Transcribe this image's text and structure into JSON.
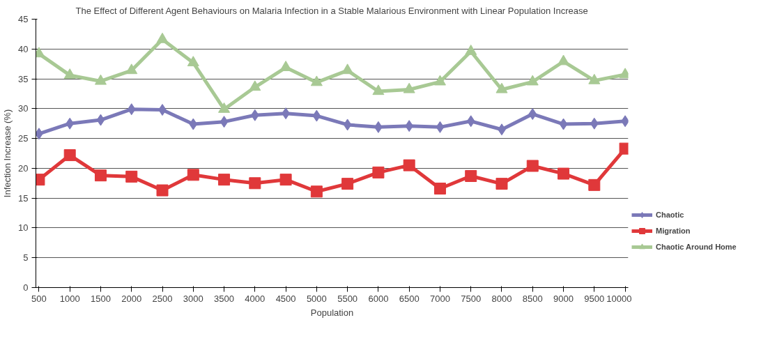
{
  "chart_data": {
    "type": "line",
    "title": "The Effect of Different Agent Behaviours on Malaria Infection in a Stable Malarious Environment with Linear Population Increase",
    "xlabel": "Population",
    "ylabel": "Infection Increase (%)",
    "categories": [
      "500",
      "1000",
      "1500",
      "2000",
      "2500",
      "3000",
      "3500",
      "4000",
      "4500",
      "5000",
      "5500",
      "6000",
      "6500",
      "7000",
      "7500",
      "8000",
      "8500",
      "9000",
      "9500",
      "10000"
    ],
    "ylim": [
      0,
      45
    ],
    "yticks": [
      0,
      5,
      10,
      15,
      20,
      25,
      30,
      35,
      40,
      45
    ],
    "grid": "y",
    "legend": "right",
    "series": [
      {
        "name": "Chaotic",
        "color": "#7b79b8",
        "marker": "diamond",
        "values": [
          25.8,
          27.5,
          28.1,
          29.9,
          29.8,
          27.4,
          27.8,
          28.9,
          29.2,
          28.8,
          27.3,
          26.9,
          27.1,
          26.9,
          27.9,
          26.5,
          29.1,
          27.4,
          27.5,
          27.9
        ]
      },
      {
        "name": "Migration",
        "color": "#e0383a",
        "marker": "square",
        "values": [
          18.1,
          22.2,
          18.8,
          18.6,
          16.3,
          18.9,
          18.1,
          17.5,
          18.1,
          16.1,
          17.4,
          19.3,
          20.5,
          16.6,
          18.7,
          17.4,
          20.4,
          19.1,
          17.2,
          23.3
        ]
      },
      {
        "name": "Chaotic Around Home",
        "color": "#a8c994",
        "marker": "triangle",
        "values": [
          39.2,
          35.6,
          34.6,
          36.4,
          41.6,
          37.7,
          29.9,
          33.6,
          36.9,
          34.4,
          36.4,
          32.9,
          33.2,
          34.5,
          39.6,
          33.2,
          34.5,
          37.9,
          34.7,
          35.7
        ]
      }
    ]
  }
}
